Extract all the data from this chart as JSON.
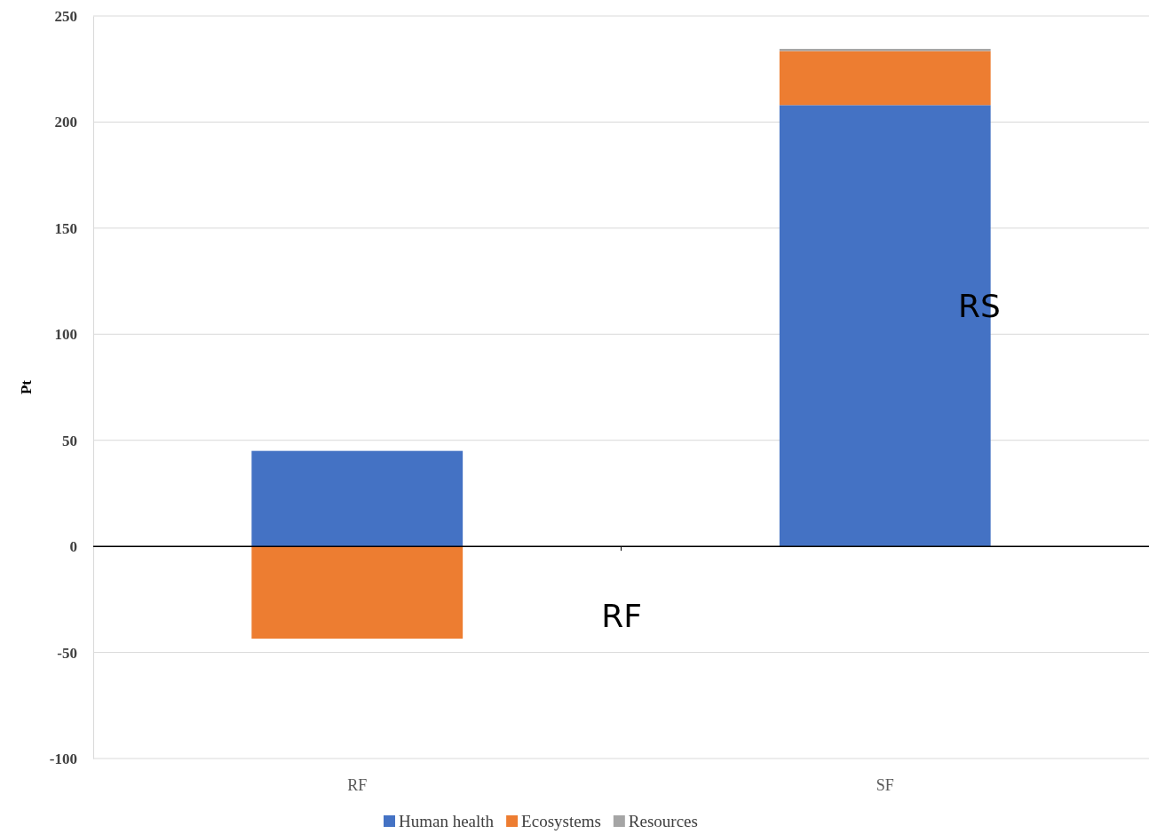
{
  "chart_data": {
    "type": "bar",
    "stacked": true,
    "ylabel": "Pt",
    "categories": [
      "RF",
      "SF"
    ],
    "series": [
      {
        "name": "Human health",
        "color": "#4472c4",
        "values": [
          45,
          208
        ]
      },
      {
        "name": "Ecosystems",
        "color": "#ed7d31",
        "values": [
          -43.5,
          25.5
        ]
      },
      {
        "name": "Resources",
        "color": "#a5a5a5",
        "values": [
          0,
          1
        ]
      }
    ],
    "ylim": [
      -100,
      250
    ],
    "yticks": [
      -100,
      -50,
      0,
      50,
      100,
      150,
      200,
      250
    ],
    "grid": "y",
    "legend": "bottom",
    "annotations": [
      "RS",
      "RF"
    ]
  }
}
